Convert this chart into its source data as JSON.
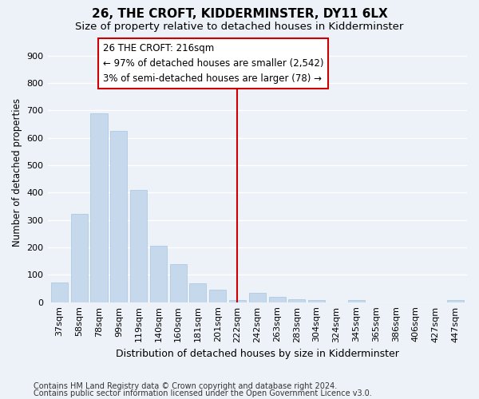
{
  "title1": "26, THE CROFT, KIDDERMINSTER, DY11 6LX",
  "title2": "Size of property relative to detached houses in Kidderminster",
  "xlabel": "Distribution of detached houses by size in Kidderminster",
  "ylabel": "Number of detached properties",
  "categories": [
    "37sqm",
    "58sqm",
    "78sqm",
    "99sqm",
    "119sqm",
    "140sqm",
    "160sqm",
    "181sqm",
    "201sqm",
    "222sqm",
    "242sqm",
    "263sqm",
    "283sqm",
    "304sqm",
    "324sqm",
    "345sqm",
    "365sqm",
    "386sqm",
    "406sqm",
    "427sqm",
    "447sqm"
  ],
  "values": [
    72,
    322,
    688,
    625,
    411,
    205,
    140,
    70,
    46,
    8,
    33,
    20,
    11,
    8,
    0,
    8,
    0,
    0,
    0,
    0,
    7
  ],
  "bar_color": "#c5d8ec",
  "bar_edge_color": "#a8c5e0",
  "vline_x": 9.0,
  "vline_color": "#cc0000",
  "annotation_text": "26 THE CROFT: 216sqm\n← 97% of detached houses are smaller (2,542)\n3% of semi-detached houses are larger (78) →",
  "annotation_box_color": "#ffffff",
  "annotation_box_edge_color": "#cc0000",
  "ylim": [
    0,
    950
  ],
  "yticks": [
    0,
    100,
    200,
    300,
    400,
    500,
    600,
    700,
    800,
    900
  ],
  "footer1": "Contains HM Land Registry data © Crown copyright and database right 2024.",
  "footer2": "Contains public sector information licensed under the Open Government Licence v3.0.",
  "bg_color": "#edf2f8",
  "plot_bg_color": "#edf2f8",
  "grid_color": "#ffffff",
  "title1_fontsize": 11,
  "title2_fontsize": 9.5,
  "xlabel_fontsize": 9,
  "ylabel_fontsize": 8.5,
  "tick_fontsize": 8,
  "footer_fontsize": 7,
  "annotation_fontsize": 8.5
}
